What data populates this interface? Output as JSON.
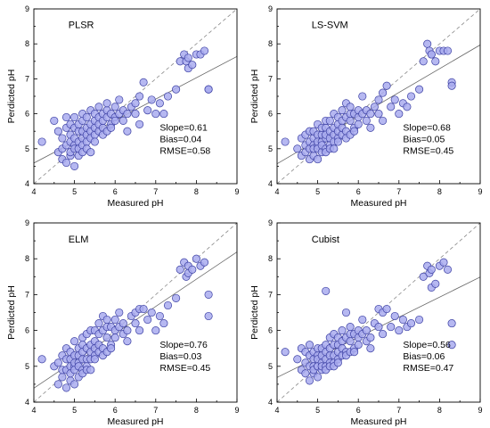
{
  "chart_data": [
    {
      "type": "scatter",
      "title": "PLSR",
      "xlabel": "Measured pH",
      "ylabel": "Perdicted pH",
      "xlim": [
        4,
        9
      ],
      "ylim": [
        4,
        9
      ],
      "xticks": [
        "4",
        "5",
        "6",
        "7",
        "8",
        "9"
      ],
      "yticks": [
        "4",
        "5",
        "6",
        "7",
        "8",
        "9"
      ],
      "stats": [
        "Slope=0.61",
        "Bias=0.04",
        "RMSE=0.58"
      ],
      "fit": {
        "slope": 0.61,
        "intercept": 2.15
      },
      "identity_line": true,
      "grid": false,
      "x": [
        4.2,
        4.5,
        4.6,
        4.6,
        4.7,
        4.7,
        4.7,
        4.8,
        4.8,
        4.8,
        4.8,
        4.9,
        4.9,
        4.9,
        4.9,
        4.9,
        5.0,
        5.0,
        5.0,
        5.0,
        5.0,
        5.0,
        5.1,
        5.1,
        5.1,
        5.1,
        5.1,
        5.2,
        5.2,
        5.2,
        5.2,
        5.2,
        5.2,
        5.3,
        5.3,
        5.3,
        5.3,
        5.3,
        5.4,
        5.4,
        5.4,
        5.4,
        5.4,
        5.5,
        5.5,
        5.5,
        5.5,
        5.5,
        5.6,
        5.6,
        5.6,
        5.6,
        5.7,
        5.7,
        5.7,
        5.7,
        5.8,
        5.8,
        5.8,
        5.8,
        5.9,
        5.9,
        5.9,
        6.0,
        6.0,
        6.0,
        6.1,
        6.1,
        6.2,
        6.2,
        6.3,
        6.3,
        6.4,
        6.5,
        6.5,
        6.6,
        6.6,
        6.7,
        6.8,
        6.9,
        7.0,
        7.1,
        7.2,
        7.3,
        7.5,
        7.6,
        7.7,
        7.75,
        7.8,
        7.8,
        7.9,
        8.0,
        8.1,
        8.2,
        8.3,
        8.3
      ],
      "y": [
        5.2,
        5.8,
        4.9,
        5.5,
        4.7,
        5.3,
        5.0,
        5.6,
        4.6,
        5.1,
        5.9,
        4.8,
        5.4,
        5.2,
        5.7,
        4.9,
        5.1,
        5.6,
        4.5,
        5.3,
        5.0,
        5.9,
        5.2,
        5.5,
        4.8,
        5.7,
        5.0,
        5.3,
        5.8,
        5.1,
        4.9,
        5.5,
        6.0,
        5.4,
        5.2,
        5.6,
        5.9,
        5.0,
        5.5,
        5.7,
        5.3,
        6.1,
        4.9,
        5.8,
        5.4,
        6.0,
        5.6,
        5.2,
        5.9,
        5.5,
        6.2,
        5.7,
        5.6,
        6.0,
        5.4,
        5.8,
        5.9,
        6.1,
        5.5,
        6.3,
        5.7,
        6.0,
        5.6,
        5.9,
        6.2,
        5.8,
        6.0,
        6.4,
        5.8,
        6.1,
        6.0,
        5.5,
        6.2,
        6.3,
        6.0,
        6.5,
        5.7,
        6.9,
        6.1,
        6.4,
        6.0,
        6.3,
        6.0,
        6.5,
        6.7,
        7.5,
        7.7,
        7.5,
        7.3,
        7.6,
        7.4,
        7.7,
        7.7,
        7.8,
        6.7,
        6.7
      ]
    },
    {
      "type": "scatter",
      "title": "LS-SVM",
      "xlabel": "Measured pH",
      "ylabel": "Perdicted pH",
      "xlim": [
        4,
        9
      ],
      "ylim": [
        4,
        9
      ],
      "xticks": [
        "4",
        "5",
        "6",
        "7",
        "8",
        "9"
      ],
      "yticks": [
        "4",
        "5",
        "6",
        "7",
        "8",
        "9"
      ],
      "stats": [
        "Slope=0.68",
        "Bias=0.05",
        "RMSE=0.45"
      ],
      "fit": {
        "slope": 0.68,
        "intercept": 1.85
      },
      "identity_line": true,
      "grid": false,
      "x": [
        4.2,
        4.5,
        4.6,
        4.6,
        4.7,
        4.7,
        4.7,
        4.8,
        4.8,
        4.8,
        4.8,
        4.9,
        4.9,
        4.9,
        4.9,
        4.9,
        5.0,
        5.0,
        5.0,
        5.0,
        5.0,
        5.0,
        5.1,
        5.1,
        5.1,
        5.1,
        5.1,
        5.2,
        5.2,
        5.2,
        5.2,
        5.2,
        5.2,
        5.3,
        5.3,
        5.3,
        5.3,
        5.3,
        5.4,
        5.4,
        5.4,
        5.4,
        5.4,
        5.5,
        5.5,
        5.5,
        5.5,
        5.5,
        5.6,
        5.6,
        5.6,
        5.6,
        5.7,
        5.7,
        5.7,
        5.7,
        5.8,
        5.8,
        5.8,
        5.8,
        5.9,
        5.9,
        5.9,
        6.0,
        6.0,
        6.0,
        6.1,
        6.1,
        6.2,
        6.2,
        6.3,
        6.3,
        6.4,
        6.5,
        6.5,
        6.6,
        6.6,
        6.7,
        6.8,
        6.9,
        7.0,
        7.1,
        7.2,
        7.3,
        7.5,
        7.6,
        7.7,
        7.75,
        7.8,
        7.8,
        7.9,
        8.0,
        8.1,
        8.2,
        8.3,
        8.3
      ],
      "y": [
        5.2,
        5.0,
        4.8,
        5.3,
        4.9,
        5.4,
        5.1,
        5.2,
        4.7,
        5.0,
        5.5,
        4.8,
        5.3,
        5.1,
        5.5,
        5.0,
        5.1,
        5.4,
        4.7,
        5.2,
        5.0,
        5.7,
        5.2,
        5.4,
        4.9,
        5.6,
        5.1,
        5.3,
        5.6,
        5.0,
        4.9,
        5.4,
        5.8,
        5.3,
        5.1,
        5.5,
        5.8,
        5.0,
        5.4,
        5.6,
        5.2,
        6.0,
        5.0,
        5.7,
        5.3,
        5.9,
        5.5,
        5.2,
        5.8,
        5.4,
        6.1,
        5.6,
        5.5,
        5.9,
        5.3,
        6.3,
        5.8,
        6.0,
        5.4,
        6.2,
        5.6,
        6.0,
        5.5,
        5.9,
        6.1,
        5.7,
        6.0,
        6.5,
        5.8,
        6.1,
        6.0,
        5.6,
        6.2,
        6.4,
        6.0,
        6.6,
        5.8,
        6.8,
        6.2,
        6.4,
        6.0,
        6.3,
        6.2,
        6.5,
        6.7,
        7.5,
        8.0,
        7.8,
        7.7,
        7.7,
        7.5,
        7.8,
        7.8,
        7.8,
        6.9,
        6.8
      ]
    },
    {
      "type": "scatter",
      "title": "ELM",
      "xlabel": "Measured pH",
      "ylabel": "Perdicted pH",
      "xlim": [
        4,
        9
      ],
      "ylim": [
        4,
        9
      ],
      "xticks": [
        "4",
        "5",
        "6",
        "7",
        "8",
        "9"
      ],
      "yticks": [
        "4",
        "5",
        "6",
        "7",
        "8",
        "9"
      ],
      "stats": [
        "Slope=0.76",
        "Bias=0.03",
        "RMSE=0.45"
      ],
      "fit": {
        "slope": 0.76,
        "intercept": 1.35
      },
      "identity_line": true,
      "grid": false,
      "x": [
        4.2,
        4.5,
        4.6,
        4.6,
        4.7,
        4.7,
        4.7,
        4.8,
        4.8,
        4.8,
        4.8,
        4.9,
        4.9,
        4.9,
        4.9,
        4.9,
        5.0,
        5.0,
        5.0,
        5.0,
        5.0,
        5.0,
        5.1,
        5.1,
        5.1,
        5.1,
        5.1,
        5.2,
        5.2,
        5.2,
        5.2,
        5.2,
        5.2,
        5.3,
        5.3,
        5.3,
        5.3,
        5.3,
        5.4,
        5.4,
        5.4,
        5.4,
        5.4,
        5.5,
        5.5,
        5.5,
        5.5,
        5.5,
        5.6,
        5.6,
        5.6,
        5.6,
        5.7,
        5.7,
        5.7,
        5.7,
        5.8,
        5.8,
        5.8,
        5.8,
        5.9,
        5.9,
        5.9,
        6.0,
        6.0,
        6.0,
        6.1,
        6.1,
        6.2,
        6.2,
        6.3,
        6.3,
        6.4,
        6.5,
        6.5,
        6.6,
        6.6,
        6.7,
        6.8,
        6.9,
        7.0,
        7.1,
        7.2,
        7.3,
        7.5,
        7.6,
        7.7,
        7.75,
        7.8,
        7.8,
        7.9,
        8.0,
        8.1,
        8.2,
        8.3,
        8.3
      ],
      "y": [
        5.2,
        5.0,
        4.5,
        5.1,
        4.7,
        5.3,
        4.9,
        5.2,
        4.4,
        4.9,
        5.5,
        4.6,
        5.2,
        5.0,
        5.4,
        4.8,
        5.0,
        5.3,
        4.5,
        5.1,
        4.9,
        5.7,
        5.1,
        5.3,
        4.7,
        5.5,
        5.0,
        5.2,
        5.6,
        4.9,
        4.8,
        5.4,
        5.8,
        5.2,
        5.0,
        5.5,
        5.9,
        4.9,
        5.4,
        5.6,
        5.2,
        6.0,
        4.9,
        5.7,
        5.3,
        6.0,
        5.5,
        5.2,
        5.9,
        5.4,
        6.2,
        5.6,
        5.5,
        6.0,
        5.3,
        6.4,
        5.8,
        6.1,
        5.4,
        6.3,
        5.6,
        6.1,
        5.5,
        6.0,
        6.3,
        5.8,
        6.1,
        6.5,
        5.9,
        6.2,
        6.0,
        5.7,
        6.4,
        6.5,
        6.2,
        6.6,
        6.0,
        6.6,
        6.3,
        6.5,
        6.0,
        6.4,
        6.2,
        6.7,
        6.9,
        7.7,
        7.9,
        7.5,
        7.8,
        7.6,
        7.7,
        8.0,
        7.8,
        7.9,
        7.0,
        6.4
      ]
    },
    {
      "type": "scatter",
      "title": "Cubist",
      "xlabel": "Measured pH",
      "ylabel": "Perdicted pH",
      "xlim": [
        4,
        9
      ],
      "ylim": [
        4,
        9
      ],
      "xticks": [
        "4",
        "5",
        "6",
        "7",
        "8",
        "9"
      ],
      "yticks": [
        "4",
        "5",
        "6",
        "7",
        "8",
        "9"
      ],
      "stats": [
        "Slope=0.56",
        "Bias=0.06",
        "RMSE=0.47"
      ],
      "fit": {
        "slope": 0.56,
        "intercept": 2.45
      },
      "identity_line": true,
      "grid": false,
      "x": [
        4.2,
        4.5,
        4.6,
        4.6,
        4.7,
        4.7,
        4.7,
        4.8,
        4.8,
        4.8,
        4.8,
        4.9,
        4.9,
        4.9,
        4.9,
        4.9,
        5.0,
        5.0,
        5.0,
        5.0,
        5.0,
        5.0,
        5.1,
        5.1,
        5.1,
        5.1,
        5.1,
        5.2,
        5.2,
        5.2,
        5.2,
        5.2,
        5.2,
        5.3,
        5.3,
        5.3,
        5.3,
        5.3,
        5.4,
        5.4,
        5.4,
        5.4,
        5.4,
        5.5,
        5.5,
        5.5,
        5.5,
        5.5,
        5.6,
        5.6,
        5.6,
        5.6,
        5.7,
        5.7,
        5.7,
        5.7,
        5.8,
        5.8,
        5.8,
        5.8,
        5.9,
        5.9,
        5.9,
        6.0,
        6.0,
        6.0,
        6.1,
        6.1,
        6.2,
        6.2,
        6.3,
        6.3,
        6.4,
        6.5,
        6.5,
        6.6,
        6.6,
        6.7,
        6.8,
        6.9,
        7.0,
        7.1,
        7.2,
        7.3,
        7.5,
        7.6,
        7.7,
        7.75,
        7.8,
        7.8,
        7.9,
        8.0,
        8.1,
        8.2,
        8.3,
        8.3
      ],
      "y": [
        5.4,
        5.2,
        4.9,
        5.5,
        4.8,
        5.4,
        5.1,
        5.3,
        4.6,
        5.0,
        5.6,
        4.8,
        5.2,
        5.0,
        5.4,
        4.9,
        5.0,
        5.3,
        4.7,
        5.2,
        5.0,
        5.5,
        5.1,
        5.3,
        4.9,
        5.5,
        5.0,
        5.2,
        5.6,
        5.0,
        4.9,
        5.4,
        7.1,
        5.3,
        5.1,
        5.5,
        5.8,
        5.0,
        5.3,
        5.6,
        5.1,
        5.9,
        5.0,
        5.6,
        5.2,
        5.8,
        5.4,
        5.1,
        5.7,
        5.3,
        6.0,
        5.5,
        5.4,
        5.8,
        5.3,
        6.5,
        5.7,
        5.9,
        5.4,
        6.1,
        5.5,
        5.9,
        5.4,
        5.8,
        6.0,
        5.6,
        5.9,
        6.3,
        5.7,
        6.0,
        5.8,
        5.5,
        6.2,
        6.6,
        6.1,
        6.5,
        5.9,
        6.6,
        6.1,
        6.4,
        6.0,
        6.3,
        6.1,
        6.2,
        6.3,
        7.5,
        7.8,
        7.6,
        7.7,
        7.2,
        7.3,
        7.8,
        7.9,
        7.7,
        6.2,
        5.6
      ]
    }
  ]
}
